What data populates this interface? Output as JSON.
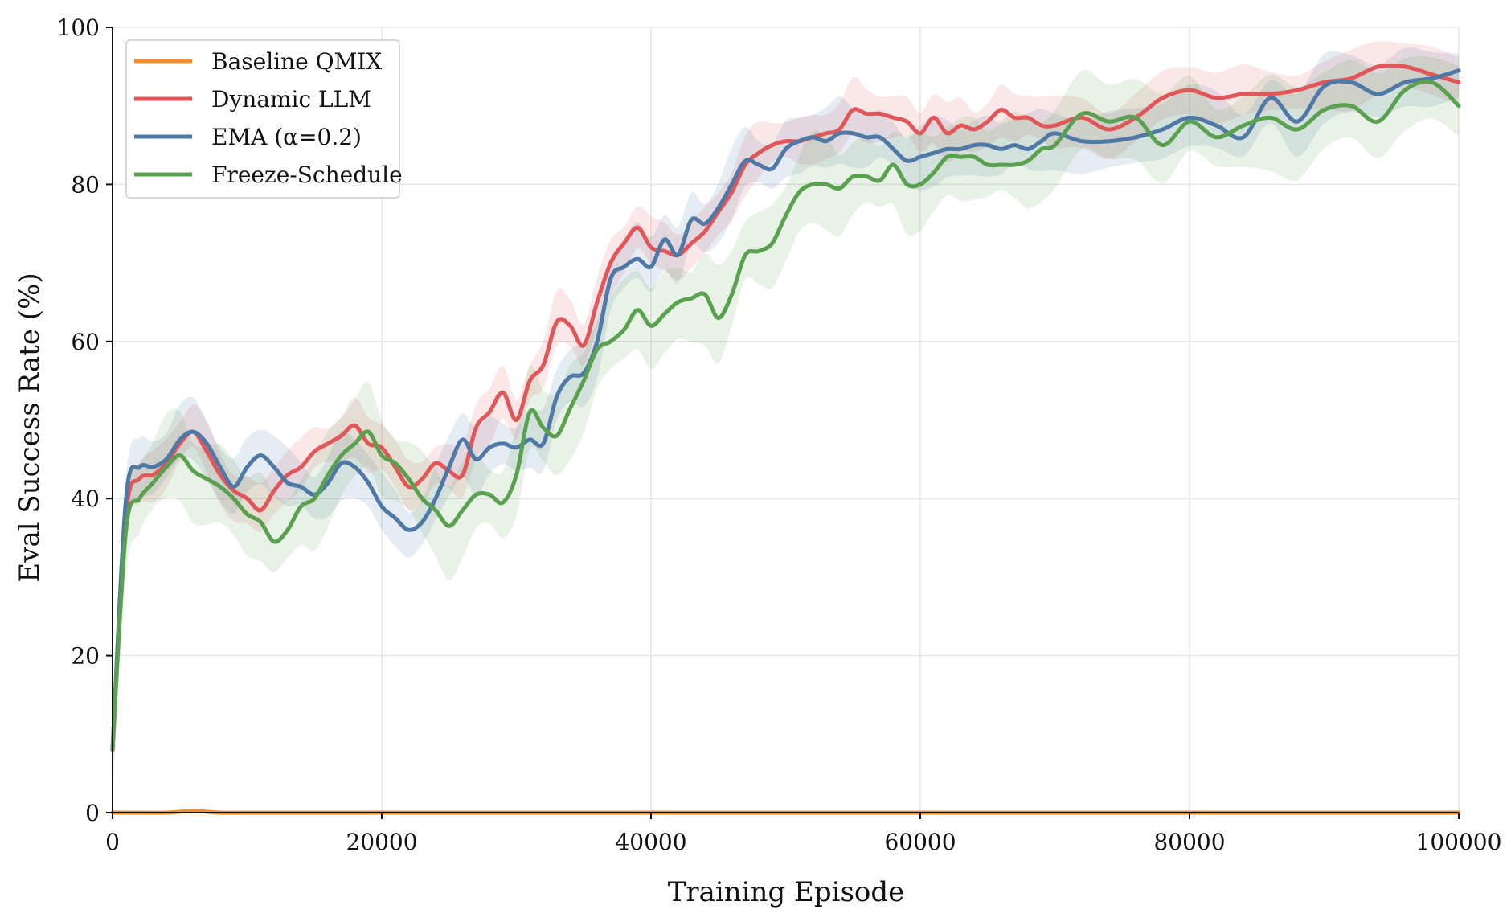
{
  "chart_data": {
    "type": "line",
    "xlabel": "Training Episode",
    "ylabel": "Eval Success Rate (%)",
    "xlim": [
      0,
      100000
    ],
    "ylim": [
      0,
      100
    ],
    "x_ticks": [
      0,
      20000,
      40000,
      60000,
      80000,
      100000
    ],
    "x_tick_labels": [
      "0",
      "20000",
      "40000",
      "60000",
      "80000",
      "100000"
    ],
    "y_ticks": [
      0,
      20,
      40,
      60,
      80,
      100
    ],
    "y_tick_labels": [
      "0",
      "20",
      "40",
      "60",
      "80",
      "100"
    ],
    "grid": true,
    "legend_position": "top-left",
    "series": [
      {
        "name": "Baseline QMIX",
        "color": "#f28e2b",
        "x": [
          0,
          2000,
          4000,
          6000,
          8000,
          10000,
          20000,
          30000,
          40000,
          50000,
          60000,
          70000,
          80000,
          90000,
          100000
        ],
        "values": [
          0,
          0,
          0,
          0.2,
          0,
          0,
          0,
          0,
          0,
          0,
          0,
          0,
          0,
          0,
          0
        ],
        "band": 0
      },
      {
        "name": "Dynamic LLM",
        "color": "#e15759",
        "x": [
          0,
          1000,
          2000,
          3000,
          4000,
          5000,
          6000,
          7000,
          8000,
          9000,
          10000,
          11000,
          12000,
          13000,
          14000,
          15000,
          16000,
          17000,
          18000,
          19000,
          20000,
          21000,
          22000,
          23000,
          24000,
          25000,
          26000,
          27000,
          28000,
          29000,
          30000,
          31000,
          32000,
          33000,
          34000,
          35000,
          36000,
          37000,
          38000,
          39000,
          40000,
          41000,
          42000,
          43000,
          44000,
          45000,
          46000,
          47000,
          48000,
          49000,
          50000,
          51000,
          52000,
          53000,
          54000,
          55000,
          56000,
          57000,
          58000,
          59000,
          60000,
          61000,
          62000,
          63000,
          64000,
          65000,
          66000,
          67000,
          68000,
          69000,
          70000,
          72000,
          74000,
          76000,
          78000,
          80000,
          82000,
          84000,
          86000,
          88000,
          90000,
          92000,
          94000,
          96000,
          98000,
          100000
        ],
        "values": [
          8,
          38,
          42.5,
          43,
          44.5,
          47,
          48.5,
          46,
          43,
          41,
          40,
          38.5,
          41,
          43,
          44,
          46,
          47,
          48,
          49.3,
          47,
          46.5,
          44,
          41.5,
          42.5,
          44.5,
          43.5,
          43,
          49,
          51,
          53.5,
          50,
          55,
          57,
          62.5,
          62,
          59.5,
          65,
          70,
          72.5,
          74.5,
          72,
          71.5,
          71,
          72.5,
          74,
          76.5,
          79,
          82.5,
          84,
          85,
          85.5,
          85.5,
          86,
          86.5,
          87,
          89.5,
          89,
          89,
          88.5,
          88,
          86.5,
          88.5,
          86.5,
          87.5,
          87,
          88,
          89.5,
          88.5,
          88.5,
          87.5,
          87.5,
          88.5,
          87,
          88.5,
          91,
          92,
          91,
          91.5,
          91.5,
          92,
          93,
          93.5,
          95,
          95,
          94,
          93
        ],
        "band": 3
      },
      {
        "name": "EMA (α=0.2)",
        "color": "#4e79a7",
        "x": [
          0,
          1000,
          2000,
          3000,
          4000,
          5000,
          6000,
          7000,
          8000,
          9000,
          10000,
          11000,
          12000,
          13000,
          14000,
          15000,
          16000,
          17000,
          18000,
          19000,
          20000,
          21000,
          22000,
          23000,
          24000,
          25000,
          26000,
          27000,
          28000,
          29000,
          30000,
          31000,
          32000,
          33000,
          34000,
          35000,
          36000,
          37000,
          38000,
          39000,
          40000,
          41000,
          42000,
          43000,
          44000,
          45000,
          46000,
          47000,
          48000,
          49000,
          50000,
          51000,
          52000,
          53000,
          54000,
          55000,
          56000,
          57000,
          58000,
          59000,
          60000,
          61000,
          62000,
          63000,
          64000,
          65000,
          66000,
          67000,
          68000,
          69000,
          70000,
          72000,
          74000,
          76000,
          78000,
          80000,
          82000,
          84000,
          86000,
          88000,
          90000,
          92000,
          94000,
          96000,
          98000,
          100000
        ],
        "values": [
          8,
          40,
          44,
          44,
          45,
          47.5,
          48.5,
          47,
          44,
          41.5,
          44,
          45.5,
          44,
          42,
          41.5,
          40.5,
          42,
          44.5,
          44,
          42,
          39,
          37.5,
          36,
          37,
          40,
          44,
          47.5,
          45,
          46.5,
          47,
          46.5,
          47.5,
          47,
          53,
          55.5,
          56,
          60,
          68,
          69.5,
          70.5,
          69.5,
          73,
          71,
          75.5,
          75,
          77,
          80,
          83,
          82.5,
          82,
          84.5,
          85.5,
          86,
          85.5,
          86.5,
          86.5,
          86,
          86,
          84.5,
          83,
          83.5,
          84,
          84.5,
          84.5,
          85,
          85,
          84.5,
          85,
          84.5,
          85.5,
          86.5,
          85.5,
          85.5,
          86,
          87,
          88.5,
          87.5,
          86,
          91,
          88,
          92.5,
          93,
          91.5,
          93,
          93.5,
          94.5
        ],
        "band": 3.5
      },
      {
        "name": "Freeze-Schedule",
        "color": "#59a14f",
        "x": [
          0,
          1000,
          2000,
          3000,
          4000,
          5000,
          6000,
          7000,
          8000,
          9000,
          10000,
          11000,
          12000,
          13000,
          14000,
          15000,
          16000,
          17000,
          18000,
          19000,
          20000,
          21000,
          22000,
          23000,
          24000,
          25000,
          26000,
          27000,
          28000,
          29000,
          30000,
          31000,
          32000,
          33000,
          34000,
          35000,
          36000,
          37000,
          38000,
          39000,
          40000,
          41000,
          42000,
          43000,
          44000,
          45000,
          46000,
          47000,
          48000,
          49000,
          50000,
          51000,
          52000,
          53000,
          54000,
          55000,
          56000,
          57000,
          58000,
          59000,
          60000,
          61000,
          62000,
          63000,
          64000,
          65000,
          66000,
          67000,
          68000,
          69000,
          70000,
          72000,
          74000,
          76000,
          78000,
          80000,
          82000,
          84000,
          86000,
          88000,
          90000,
          92000,
          94000,
          96000,
          98000,
          100000
        ],
        "values": [
          8,
          36,
          40,
          42,
          44,
          45.5,
          43.5,
          42.5,
          41.5,
          40,
          38,
          37,
          34.5,
          36,
          39,
          40,
          43,
          45.5,
          47,
          48.5,
          45.5,
          44.5,
          42.5,
          40,
          38.5,
          36.5,
          38.5,
          40.5,
          40.5,
          39.5,
          43,
          51,
          49,
          48,
          51.5,
          55,
          59,
          60,
          61.5,
          64,
          62,
          63.5,
          65,
          65.5,
          66,
          63,
          66,
          71,
          71.5,
          72.5,
          76,
          79,
          80,
          80,
          79.5,
          81,
          81,
          80.5,
          82.5,
          80,
          80,
          81.5,
          83.5,
          83.5,
          83.5,
          82.5,
          82.5,
          82.5,
          83,
          84.5,
          85,
          89,
          88,
          88.5,
          85,
          88,
          86,
          87.5,
          88.5,
          87,
          89.5,
          90,
          88,
          92,
          93,
          90
        ],
        "band": 5
      }
    ]
  }
}
